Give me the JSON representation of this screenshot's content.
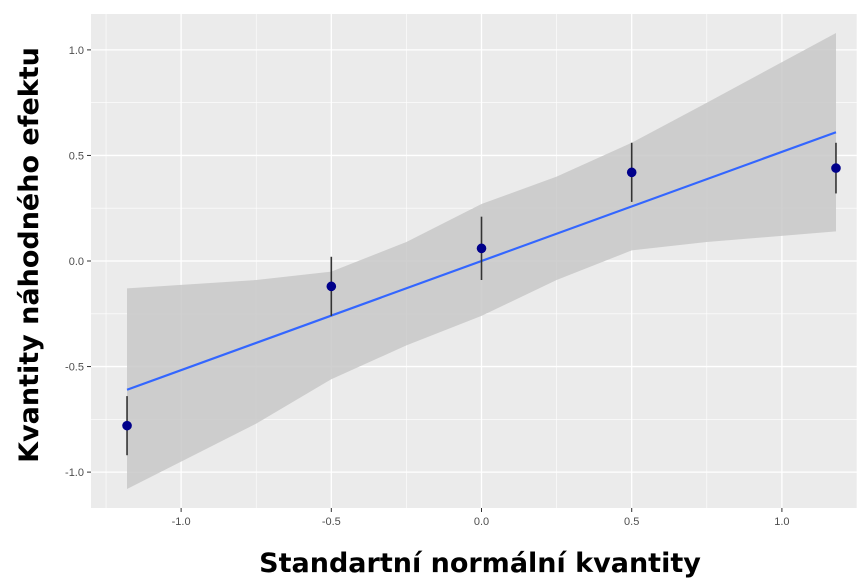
{
  "chart_data": {
    "type": "scatter",
    "xlabel": "Standartní normální kvantity",
    "ylabel": "Kvantity náhodného efektu",
    "xlim": [
      -1.3,
      1.25
    ],
    "ylim": [
      -1.17,
      1.17
    ],
    "x_ticks": [
      -1.0,
      -0.5,
      0.0,
      0.5,
      1.0
    ],
    "x_tick_labels": [
      "-1.0",
      "-0.5",
      "0.0",
      "0.5",
      "1.0"
    ],
    "y_ticks": [
      -1.0,
      -0.5,
      0.0,
      0.5,
      1.0
    ],
    "y_tick_labels": [
      "-1.0",
      "-0.5",
      "0.0",
      "0.5",
      "1.0"
    ],
    "grid": true,
    "points": [
      {
        "x": -1.18,
        "y": -0.78,
        "lower": -0.92,
        "upper": -0.64
      },
      {
        "x": -0.5,
        "y": -0.12,
        "lower": -0.26,
        "upper": 0.02
      },
      {
        "x": 0.0,
        "y": 0.06,
        "lower": -0.09,
        "upper": 0.21
      },
      {
        "x": 0.5,
        "y": 0.42,
        "lower": 0.28,
        "upper": 0.56
      },
      {
        "x": 1.18,
        "y": 0.44,
        "lower": 0.32,
        "upper": 0.56
      }
    ],
    "fit_line": {
      "x": [
        -1.18,
        1.18
      ],
      "y": [
        -0.61,
        0.61
      ]
    },
    "confidence_band": {
      "x": [
        -1.18,
        -0.75,
        -0.5,
        -0.25,
        0.0,
        0.25,
        0.5,
        0.75,
        1.18
      ],
      "lower": [
        -1.08,
        -0.77,
        -0.56,
        -0.4,
        -0.26,
        -0.09,
        0.05,
        0.09,
        0.14
      ],
      "upper": [
        -0.13,
        -0.09,
        -0.05,
        0.09,
        0.27,
        0.4,
        0.56,
        0.75,
        1.08
      ]
    },
    "colors": {
      "panel_background": "#ebebeb",
      "grid": "#ffffff",
      "band": "#c8c8c8",
      "line": "#3366ff",
      "points": "#00008b",
      "error_bars": "#333333"
    }
  }
}
